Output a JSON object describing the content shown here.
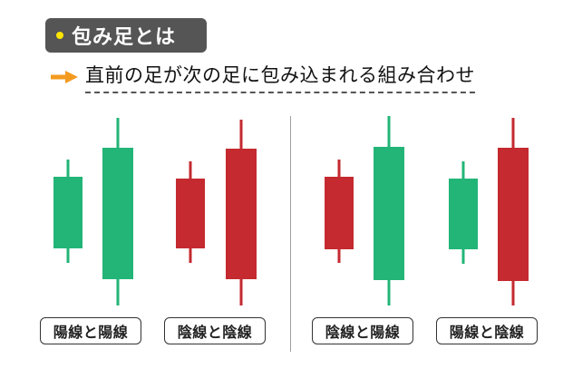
{
  "header": {
    "title": "包み足とは",
    "subtitle": "直前の足が次の足に包み込まれる組み合わせ"
  },
  "colors": {
    "bullish": "#22b577",
    "bearish": "#c42a2f",
    "badge_bg": "#555555",
    "badge_dot": "#ffe600",
    "arrow": "#f39a1e"
  },
  "icons": {
    "arrow": "right-arrow-icon",
    "bullet": "bullet-dot-icon"
  },
  "examples": [
    {
      "label": "陽線と陽線",
      "candles": [
        {
          "kind": "bullish"
        },
        {
          "kind": "bullish"
        }
      ]
    },
    {
      "label": "陰線と陰線",
      "candles": [
        {
          "kind": "bearish"
        },
        {
          "kind": "bearish"
        }
      ]
    },
    {
      "label": "陰線と陽線",
      "candles": [
        {
          "kind": "bearish"
        },
        {
          "kind": "bullish"
        }
      ]
    },
    {
      "label": "陽線と陰線",
      "candles": [
        {
          "kind": "bullish"
        },
        {
          "kind": "bearish"
        }
      ]
    }
  ]
}
